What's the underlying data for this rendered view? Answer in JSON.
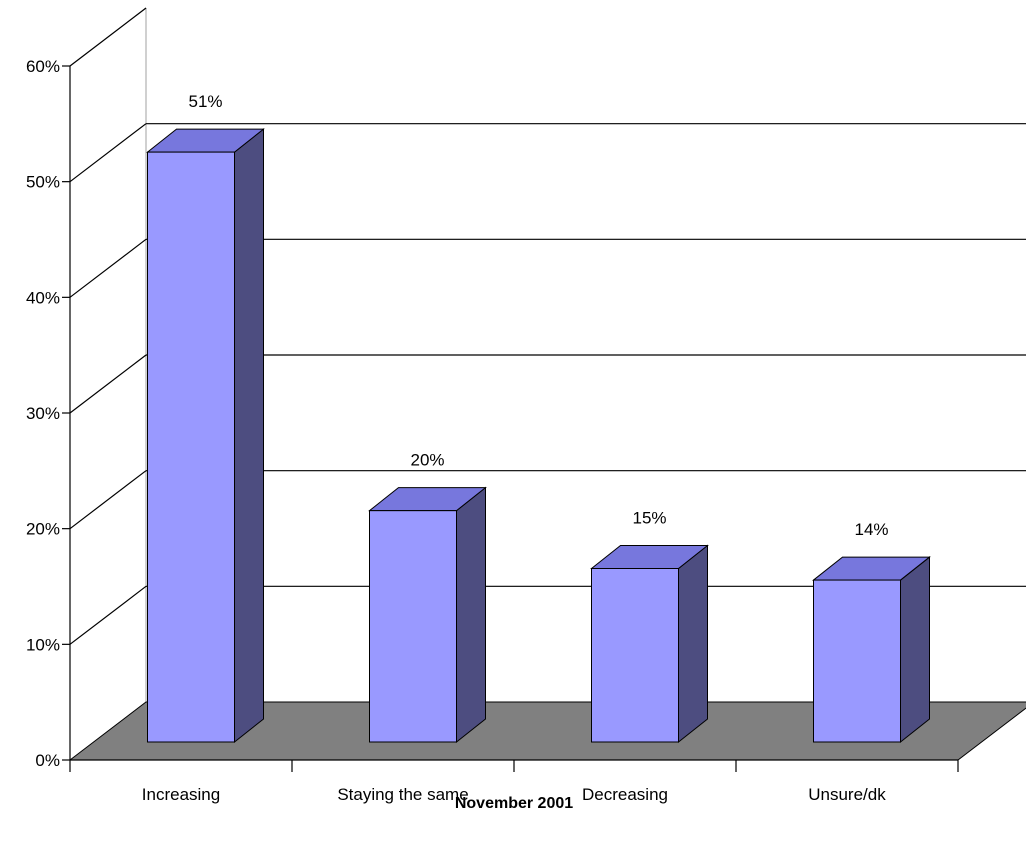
{
  "chart_data": {
    "type": "bar",
    "categories": [
      "Increasing",
      "Staying the same",
      "Decreasing",
      "Unsure/dk"
    ],
    "values": [
      51,
      20,
      15,
      14
    ],
    "data_labels": [
      "51%",
      "20%",
      "15%",
      "14%"
    ],
    "title": "",
    "xlabel": "November 2001",
    "ylabel": "",
    "ylim": [
      0,
      60
    ],
    "yticks": [
      {
        "value": 0,
        "label": "0%"
      },
      {
        "value": 10,
        "label": "10%"
      },
      {
        "value": 20,
        "label": "20%"
      },
      {
        "value": 30,
        "label": "30%"
      },
      {
        "value": 40,
        "label": "40%"
      },
      {
        "value": 50,
        "label": "50%"
      },
      {
        "value": 60,
        "label": "60%"
      }
    ],
    "grid": true,
    "legend": "none",
    "style": "3d-column",
    "colors": {
      "bar_front": "#9999FF",
      "bar_top": "#7777DD",
      "bar_side": "#4D4D80",
      "floor": "#808080",
      "grid": "#000000",
      "wall_edge": "#A0A0A0"
    }
  }
}
